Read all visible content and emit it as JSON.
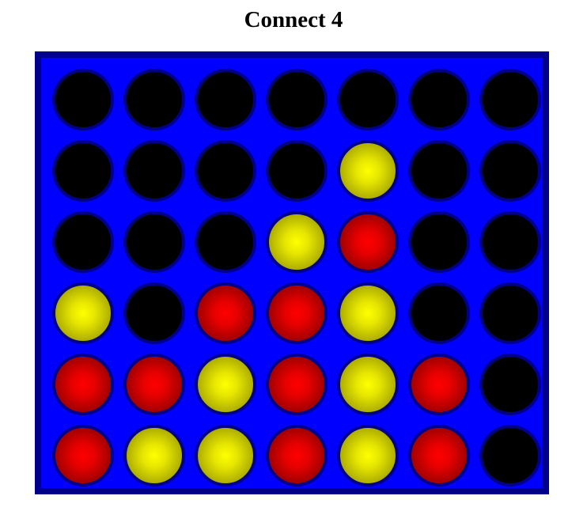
{
  "title": "Connect 4",
  "colors": {
    "board": "#0000ff",
    "board_border": "#00008b",
    "empty": "#000000",
    "red": "#ff0000",
    "yellow": "#ffff00"
  },
  "board": {
    "columns": 7,
    "rows": 6,
    "cells": [
      [
        "empty",
        "empty",
        "empty",
        "empty",
        "empty",
        "empty",
        "empty"
      ],
      [
        "empty",
        "empty",
        "empty",
        "empty",
        "yellow",
        "empty",
        "empty"
      ],
      [
        "empty",
        "empty",
        "empty",
        "yellow",
        "red",
        "empty",
        "empty"
      ],
      [
        "yellow",
        "empty",
        "red",
        "red",
        "yellow",
        "empty",
        "empty"
      ],
      [
        "red",
        "red",
        "yellow",
        "red",
        "yellow",
        "red",
        "empty"
      ],
      [
        "red",
        "yellow",
        "yellow",
        "red",
        "yellow",
        "red",
        "empty"
      ]
    ]
  }
}
